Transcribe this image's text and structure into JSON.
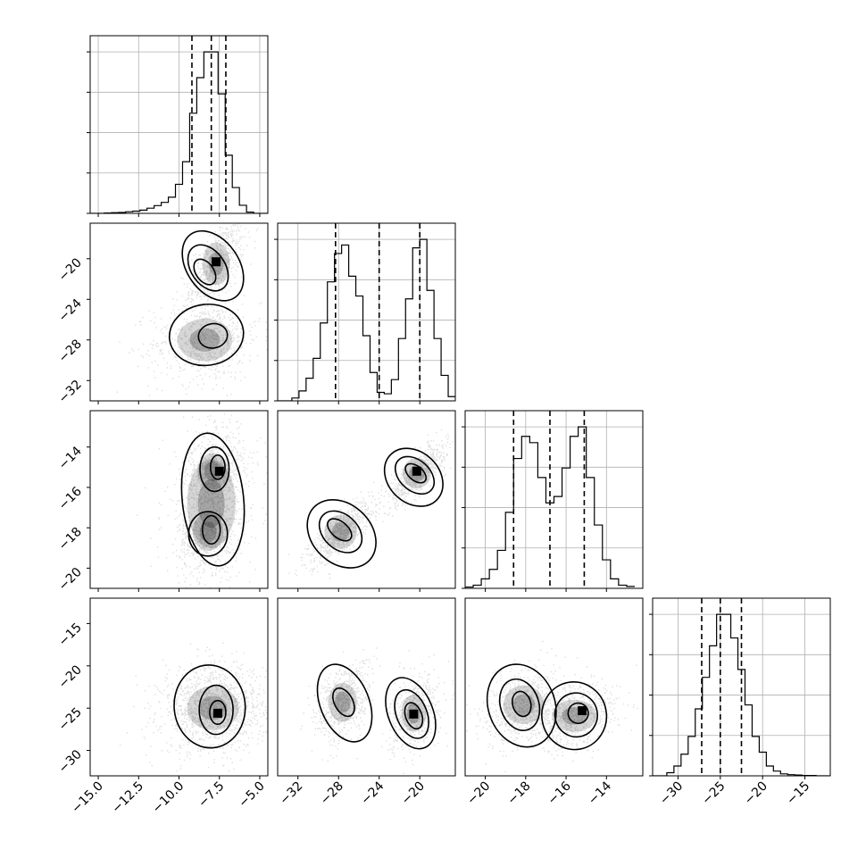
{
  "chart_data": {
    "type": "corner",
    "grid": true,
    "parameters": [
      {
        "range": [
          -15.5,
          -4.5
        ],
        "ticks": [
          -15.0,
          -12.5,
          -10.0,
          -7.5,
          -5.0
        ],
        "tick_labels": [
          "−15.0",
          "−12.5",
          "−10.0",
          "−7.5",
          "−5.0"
        ],
        "quantiles": [
          -9.2,
          -8.0,
          -7.1
        ]
      },
      {
        "range": [
          -34,
          -16.5
        ],
        "ticks": [
          -32,
          -28,
          -24,
          -20
        ],
        "tick_labels": [
          "−32",
          "−28",
          "−24",
          "−20"
        ],
        "quantiles": [
          -28.3,
          -24.0,
          -20.0
        ]
      },
      {
        "range": [
          -21,
          -12.2
        ],
        "ticks": [
          -20,
          -18,
          -16,
          -14
        ],
        "tick_labels": [
          "−20",
          "−18",
          "−16",
          "−14"
        ],
        "quantiles": [
          -18.6,
          -16.8,
          -15.1
        ]
      },
      {
        "range": [
          -33,
          -12
        ],
        "ticks": [
          -30,
          -25,
          -20,
          -15
        ],
        "tick_labels": [
          "−30",
          "−25",
          "−20",
          "−15"
        ],
        "quantiles": [
          -27.2,
          -25.0,
          -22.5
        ]
      }
    ],
    "histograms": [
      {
        "bins": [
          -15.5,
          -15.06,
          -14.62,
          -14.18,
          -13.74,
          -13.3,
          -12.86,
          -12.42,
          -11.98,
          -11.54,
          -11.1,
          -10.66,
          -10.22,
          -9.78,
          -9.34,
          -8.9,
          -8.46,
          -8.02,
          -7.58,
          -7.14,
          -6.7,
          -6.26,
          -5.82,
          -5.38,
          -4.94,
          -4.5
        ],
        "counts": [
          0,
          0,
          1,
          2,
          3,
          5,
          7,
          10,
          16,
          24,
          34,
          50,
          90,
          160,
          310,
          420,
          500,
          500,
          370,
          180,
          80,
          25,
          4,
          0,
          0
        ]
      },
      {
        "bins": [
          -34,
          -33.3,
          -32.6,
          -31.9,
          -31.2,
          -30.5,
          -29.8,
          -29.1,
          -28.4,
          -27.7,
          -27.0,
          -26.3,
          -25.6,
          -24.9,
          -24.2,
          -23.5,
          -22.8,
          -22.1,
          -21.4,
          -20.7,
          -20.0,
          -19.3,
          -18.6,
          -17.9,
          -17.2,
          -16.5
        ],
        "counts": [
          0,
          0,
          10,
          35,
          80,
          150,
          275,
          420,
          520,
          550,
          440,
          370,
          230,
          100,
          30,
          25,
          75,
          220,
          360,
          540,
          570,
          390,
          220,
          90,
          15
        ]
      },
      {
        "bins": [
          -21,
          -20.6,
          -20.2,
          -19.8,
          -19.4,
          -19.0,
          -18.6,
          -18.2,
          -17.8,
          -17.4,
          -17.0,
          -16.6,
          -16.2,
          -15.8,
          -15.4,
          -15.0,
          -14.6,
          -14.2,
          -13.8,
          -13.4,
          -13.0,
          -12.6
        ],
        "counts": [
          2,
          5,
          15,
          30,
          60,
          120,
          205,
          240,
          230,
          175,
          135,
          145,
          190,
          240,
          255,
          175,
          100,
          45,
          15,
          5,
          3
        ]
      },
      {
        "bins": [
          -33,
          -32.16,
          -31.32,
          -30.48,
          -29.64,
          -28.8,
          -27.96,
          -27.12,
          -26.28,
          -25.44,
          -24.6,
          -23.76,
          -22.92,
          -22.08,
          -21.24,
          -20.4,
          -19.56,
          -18.72,
          -17.88,
          -17.04,
          -16.2,
          -15.36,
          -14.52,
          -13.68,
          -12.84,
          -12.0
        ],
        "counts": [
          0,
          0,
          8,
          25,
          55,
          100,
          170,
          250,
          330,
          410,
          410,
          350,
          270,
          180,
          100,
          60,
          25,
          12,
          5,
          3,
          2,
          1,
          1,
          0,
          0
        ]
      }
    ],
    "pairs": [
      {
        "x": 0,
        "y": 1,
        "clusters": [
          {
            "center": [
              -7.7,
              -20.5
            ],
            "sd": [
              0.85,
              2.1
            ],
            "corr": 0.6,
            "n": 650,
            "contours": [
              [
                -8.4,
                -21.3,
                0.55,
                1.4,
                35
              ],
              [
                -8.2,
                -20.9,
                1.05,
                2.5,
                35
              ],
              [
                -7.9,
                -20.7,
                1.6,
                3.8,
                35
              ]
            ]
          },
          {
            "center": [
              -8.4,
              -28.0
            ],
            "sd": [
              1.7,
              2.1
            ],
            "corr": 0.1,
            "n": 650,
            "contours": [
              [
                -7.9,
                -27.6,
                0.9,
                1.2,
                10
              ],
              [
                -8.3,
                -27.5,
                2.3,
                3.0,
                8
              ]
            ]
          }
        ],
        "peak": [
          -7.7,
          -20.3
        ]
      },
      {
        "x": 0,
        "y": 2,
        "clusters": [
          {
            "center": [
              -7.9,
              -15.2
            ],
            "sd": [
              0.95,
              0.9
            ],
            "corr": 0.2,
            "n": 550,
            "contours": [
              [
                -7.6,
                -15.0,
                0.45,
                0.6,
                0
              ],
              [
                -7.8,
                -15.1,
                0.9,
                1.1,
                0
              ]
            ]
          },
          {
            "center": [
              -8.2,
              -18.2
            ],
            "sd": [
              0.95,
              0.95
            ],
            "corr": 0.1,
            "n": 550,
            "contours": [
              [
                -8.0,
                -18.1,
                0.55,
                0.7,
                0
              ],
              [
                -8.2,
                -18.3,
                1.2,
                1.1,
                0
              ]
            ]
          },
          {
            "center": [
              -8.0,
              -16.8
            ],
            "sd": [
              1.5,
              2.2
            ],
            "corr": 0.15,
            "n": 500,
            "contours": [
              [
                -7.9,
                -16.6,
                1.9,
                3.3,
                6
              ]
            ]
          }
        ],
        "peak": [
          -7.5,
          -15.2
        ]
      },
      {
        "x": 0,
        "y": 3,
        "clusters": [
          {
            "center": [
              -7.9,
              -25.0
            ],
            "sd": [
              1.6,
              2.6
            ],
            "corr": 0.05,
            "n": 1300,
            "contours": [
              [
                -7.6,
                -25.5,
                0.5,
                1.4,
                0
              ],
              [
                -7.7,
                -25.2,
                1.05,
                2.9,
                0
              ],
              [
                -8.1,
                -24.8,
                2.2,
                4.9,
                5
              ]
            ]
          }
        ],
        "peak": [
          -7.6,
          -25.6
        ]
      },
      {
        "x": 1,
        "y": 2,
        "clusters": [
          {
            "center": [
              -20.3,
              -15.3
            ],
            "sd": [
              1.4,
              0.75
            ],
            "corr": 0.8,
            "n": 650,
            "contours": [
              [
                -20.4,
                -15.3,
                0.7,
                0.6,
                50
              ],
              [
                -20.5,
                -15.4,
                1.5,
                1.1,
                48
              ],
              [
                -20.6,
                -15.5,
                2.5,
                1.6,
                46
              ]
            ]
          },
          {
            "center": [
              -27.8,
              -18.2
            ],
            "sd": [
              1.6,
              0.85
            ],
            "corr": 0.8,
            "n": 650,
            "contours": [
              [
                -27.9,
                -18.1,
                0.8,
                0.7,
                50
              ],
              [
                -27.8,
                -18.2,
                1.7,
                1.2,
                47
              ],
              [
                -27.7,
                -18.3,
                2.9,
                1.9,
                46
              ]
            ]
          }
        ],
        "peak": [
          -20.3,
          -15.2
        ]
      },
      {
        "x": 1,
        "y": 3,
        "clusters": [
          {
            "center": [
              -27.6,
              -24.3
            ],
            "sd": [
              1.4,
              2.3
            ],
            "corr": 0.35,
            "n": 650,
            "contours": [
              [
                -27.5,
                -24.3,
                0.9,
                1.8,
                28
              ],
              [
                -27.4,
                -24.4,
                2.4,
                4.8,
                22
              ]
            ]
          },
          {
            "center": [
              -20.6,
              -25.6
            ],
            "sd": [
              1.2,
              2.2
            ],
            "corr": 0.35,
            "n": 650,
            "contours": [
              [
                -20.6,
                -25.9,
                0.8,
                1.6,
                20
              ],
              [
                -20.8,
                -25.7,
                1.5,
                3.0,
                22
              ],
              [
                -20.9,
                -25.6,
                2.2,
                4.4,
                22
              ]
            ]
          }
        ],
        "peak": [
          -20.6,
          -25.7
        ]
      },
      {
        "x": 2,
        "y": 3,
        "clusters": [
          {
            "center": [
              -18.1,
              -24.6
            ],
            "sd": [
              1.0,
              2.3
            ],
            "corr": 0.3,
            "n": 650,
            "contours": [
              [
                -18.2,
                -24.5,
                0.45,
                1.5,
                15
              ],
              [
                -18.3,
                -24.6,
                0.95,
                3.1,
                18
              ],
              [
                -18.2,
                -24.7,
                1.65,
                5.0,
                20
              ]
            ]
          },
          {
            "center": [
              -15.6,
              -25.9
            ],
            "sd": [
              1.1,
              1.9
            ],
            "corr": 0.3,
            "n": 650,
            "contours": [
              [
                -15.4,
                -25.6,
                0.5,
                1.2,
                15
              ],
              [
                -15.5,
                -25.8,
                1.05,
                2.6,
                12
              ],
              [
                -15.6,
                -25.9,
                1.6,
                4.0,
                10
              ]
            ]
          }
        ],
        "peak": [
          -15.2,
          -25.3
        ]
      }
    ]
  }
}
